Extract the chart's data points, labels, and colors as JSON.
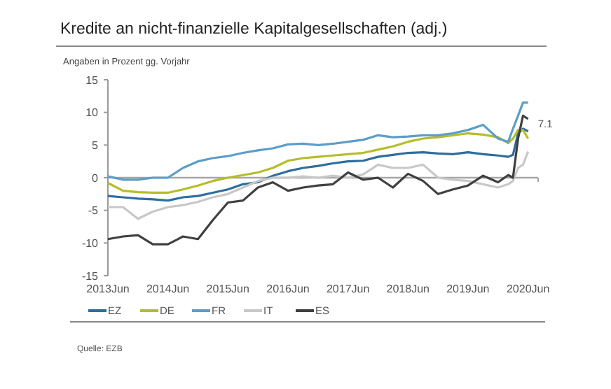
{
  "chart_data": {
    "type": "line",
    "title": "Kredite an nicht-finanzielle Kapitalgesellschaften (adj.)",
    "ylabel": "Angaben in Prozent gg. Vorjahr",
    "x": [
      "2013-06",
      "2013-09",
      "2013-12",
      "2014-03",
      "2014-06",
      "2014-09",
      "2014-12",
      "2015-03",
      "2015-06",
      "2015-09",
      "2015-12",
      "2016-03",
      "2016-06",
      "2016-09",
      "2016-12",
      "2017-03",
      "2017-06",
      "2017-09",
      "2017-12",
      "2018-03",
      "2018-06",
      "2018-09",
      "2018-12",
      "2019-03",
      "2019-06",
      "2019-09",
      "2019-12",
      "2020-02",
      "2020-03",
      "2020-04",
      "2020-05",
      "2020-06"
    ],
    "series": [
      {
        "name": "EZ",
        "color": "#2e6e9e",
        "values": [
          -2.8,
          -3.0,
          -3.2,
          -3.3,
          -3.5,
          -3.0,
          -2.8,
          -2.3,
          -1.8,
          -1.0,
          -0.7,
          0.3,
          1.0,
          1.5,
          1.8,
          2.2,
          2.5,
          2.6,
          3.2,
          3.5,
          3.8,
          3.9,
          3.7,
          3.6,
          3.9,
          3.6,
          3.4,
          3.2,
          3.5,
          6.8,
          7.5,
          7.1
        ]
      },
      {
        "name": "DE",
        "color": "#b5bd2a",
        "values": [
          -0.8,
          -2.0,
          -2.2,
          -2.3,
          -2.3,
          -1.8,
          -1.2,
          -0.5,
          0,
          0.4,
          0.8,
          1.5,
          2.6,
          3.0,
          3.2,
          3.4,
          3.6,
          3.8,
          4.3,
          4.8,
          5.5,
          6.0,
          6.2,
          6.5,
          6.8,
          6.6,
          6.2,
          5.3,
          6.0,
          7.3,
          7.3,
          6.0
        ]
      },
      {
        "name": "FR",
        "color": "#5d9dc8",
        "values": [
          0.2,
          -0.3,
          -0.3,
          0,
          0,
          1.5,
          2.5,
          3.0,
          3.3,
          3.8,
          4.2,
          4.5,
          5.1,
          5.2,
          5.0,
          5.2,
          5.5,
          5.8,
          6.5,
          6.2,
          6.3,
          6.5,
          6.5,
          6.8,
          7.3,
          8.1,
          6.0,
          5.5,
          7.5,
          9.5,
          11.5,
          11.5
        ]
      },
      {
        "name": "IT",
        "color": "#c8c8c8",
        "values": [
          -4.5,
          -4.5,
          -6.3,
          -5.2,
          -4.5,
          -4.2,
          -3.7,
          -3.0,
          -2.5,
          -1.5,
          -0.5,
          0,
          0,
          0.2,
          0,
          0.3,
          0,
          0.5,
          2.0,
          1.5,
          1.5,
          2.0,
          0,
          -0.3,
          -0.5,
          -1.0,
          -1.5,
          -1.0,
          -0.5,
          1.5,
          2.0,
          4.0
        ]
      },
      {
        "name": "ES",
        "color": "#404040",
        "values": [
          -9.4,
          -9.0,
          -8.8,
          -10.2,
          -10.2,
          -9.0,
          -9.4,
          -6.5,
          -3.8,
          -3.5,
          -1.5,
          -0.7,
          -2.0,
          -1.5,
          -1.2,
          -1.0,
          0.8,
          -0.3,
          0.0,
          -1.5,
          0.6,
          -0.5,
          -2.5,
          -1.8,
          -1.2,
          0.3,
          -0.7,
          0.4,
          0,
          6,
          9.5,
          9.0
        ]
      }
    ],
    "xlim": [
      "2013-06",
      "2020-08"
    ],
    "xticks": [
      {
        "value": "2013-06",
        "label": "2013Jun"
      },
      {
        "value": "2014-06",
        "label": "2014Jun"
      },
      {
        "value": "2015-06",
        "label": "2015Jun"
      },
      {
        "value": "2016-06",
        "label": "2016Jun"
      },
      {
        "value": "2017-06",
        "label": "2017Jun"
      },
      {
        "value": "2018-06",
        "label": "2018Jun"
      },
      {
        "value": "2019-06",
        "label": "2019Jun"
      },
      {
        "value": "2020-06",
        "label": "2020Jun"
      }
    ],
    "ylim": [
      -15,
      15
    ],
    "yticks": [
      -15,
      -10,
      -5,
      0,
      5,
      10,
      15
    ],
    "ref_lines": [
      {
        "axis": "y",
        "value": 0,
        "color": "#a6a6a6"
      }
    ],
    "annotations": [
      {
        "text": "7.1",
        "x": "2020-06",
        "y": 7.1
      },
      "Quelle: EZB"
    ],
    "legend": "bottom",
    "grid": false,
    "marker": "none",
    "line_style": "solid"
  }
}
